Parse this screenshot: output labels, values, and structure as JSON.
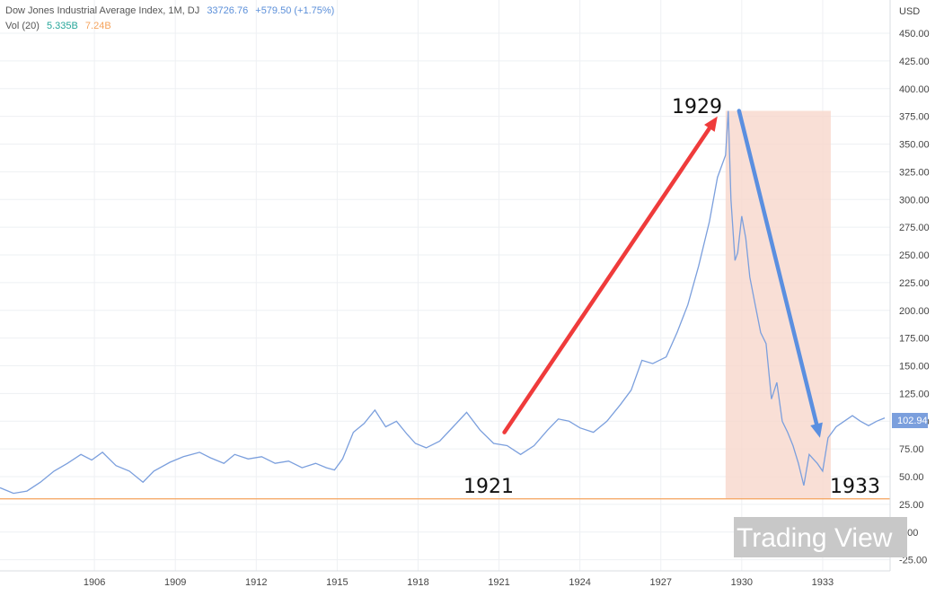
{
  "header": {
    "title": "Dow Jones Industrial Average Index, 1M, DJ",
    "price": "33726.76",
    "change": "+579.50 (+1.75%)",
    "vol_label": "Vol (20)",
    "vol_value_1": "5.335B",
    "vol_value_2": "7.24B"
  },
  "price_axis": {
    "currency": "USD",
    "current_price_label": "102.94"
  },
  "watermark": "Trading View",
  "colors": {
    "line": "#7b9fdd",
    "up_arrow": "#ef3b3b",
    "down_arrow": "#5b8fe0",
    "shade": "#f8d7cc",
    "volume_line": "#f5a35c",
    "grid": "#eef0f3"
  },
  "chart_data": {
    "type": "line",
    "title": "Dow Jones Industrial Average Index, 1M, DJ",
    "xlabel": "",
    "ylabel": "USD",
    "xlim": [
      1902.5,
      1935.5
    ],
    "ylim": [
      -35,
      480
    ],
    "grid": true,
    "y_ticks": [
      "-25.00",
      "0.00",
      "25.00",
      "50.00",
      "75.00",
      "100.00",
      "125.00",
      "150.00",
      "175.00",
      "200.00",
      "225.00",
      "250.00",
      "275.00",
      "300.00",
      "325.00",
      "350.00",
      "375.00",
      "400.00",
      "425.00",
      "450.00"
    ],
    "x_ticks": [
      "1906",
      "1909",
      "1912",
      "1915",
      "1918",
      "1921",
      "1924",
      "1927",
      "1930",
      "1933"
    ],
    "series": [
      {
        "x": [
          1902.5,
          1903.0,
          1903.5,
          1904.0,
          1904.5,
          1905.0,
          1905.5,
          1905.9,
          1906.3,
          1906.8,
          1907.3,
          1907.8,
          1908.2,
          1908.8,
          1909.3,
          1909.9,
          1910.3,
          1910.8,
          1911.2,
          1911.7,
          1912.2,
          1912.7,
          1913.2,
          1913.7,
          1914.2,
          1914.6,
          1914.9,
          1915.2,
          1915.6,
          1916.0,
          1916.4,
          1916.8,
          1917.2,
          1917.6,
          1917.9,
          1918.3,
          1918.8,
          1919.3,
          1919.8,
          1920.3,
          1920.8,
          1921.3,
          1921.8,
          1922.3,
          1922.8,
          1923.2,
          1923.6,
          1924.0,
          1924.5,
          1925.0,
          1925.5,
          1925.9,
          1926.3,
          1926.7,
          1927.2,
          1927.6,
          1928.0,
          1928.4,
          1928.8,
          1929.1,
          1929.4,
          1929.5,
          1929.6,
          1929.75,
          1929.85,
          1930.0,
          1930.15,
          1930.3,
          1930.5,
          1930.7,
          1930.9,
          1931.1,
          1931.3,
          1931.5,
          1931.7,
          1931.9,
          1932.1,
          1932.3,
          1932.5,
          1932.65,
          1932.8,
          1933.0,
          1933.2,
          1933.5,
          1933.8,
          1934.1,
          1934.4,
          1934.7,
          1935.0,
          1935.3
        ],
        "values": [
          40,
          35,
          37,
          45,
          55,
          62,
          70,
          65,
          72,
          60,
          55,
          45,
          55,
          63,
          68,
          72,
          67,
          62,
          70,
          66,
          68,
          62,
          64,
          58,
          62,
          58,
          56,
          66,
          90,
          98,
          110,
          95,
          100,
          88,
          80,
          76,
          82,
          95,
          108,
          92,
          80,
          78,
          70,
          78,
          92,
          102,
          100,
          94,
          90,
          100,
          115,
          128,
          155,
          152,
          158,
          180,
          205,
          240,
          280,
          320,
          340,
          380,
          300,
          245,
          252,
          285,
          265,
          230,
          205,
          180,
          170,
          120,
          135,
          100,
          90,
          78,
          62,
          42,
          70,
          66,
          62,
          55,
          85,
          95,
          100,
          105,
          100,
          96,
          100,
          103
        ]
      }
    ],
    "annotations": [
      "1921",
      "1929",
      "1933"
    ],
    "arrows": [
      {
        "from": [
          1921.2,
          90
        ],
        "to": [
          1929.1,
          375
        ]
      },
      {
        "from": [
          1929.9,
          380
        ],
        "to": [
          1932.9,
          85
        ]
      }
    ],
    "shaded_region": {
      "x": [
        1929.4,
        1933.3
      ],
      "y": [
        30,
        380
      ]
    },
    "volume_baseline": 30,
    "last_value": 102.94
  }
}
